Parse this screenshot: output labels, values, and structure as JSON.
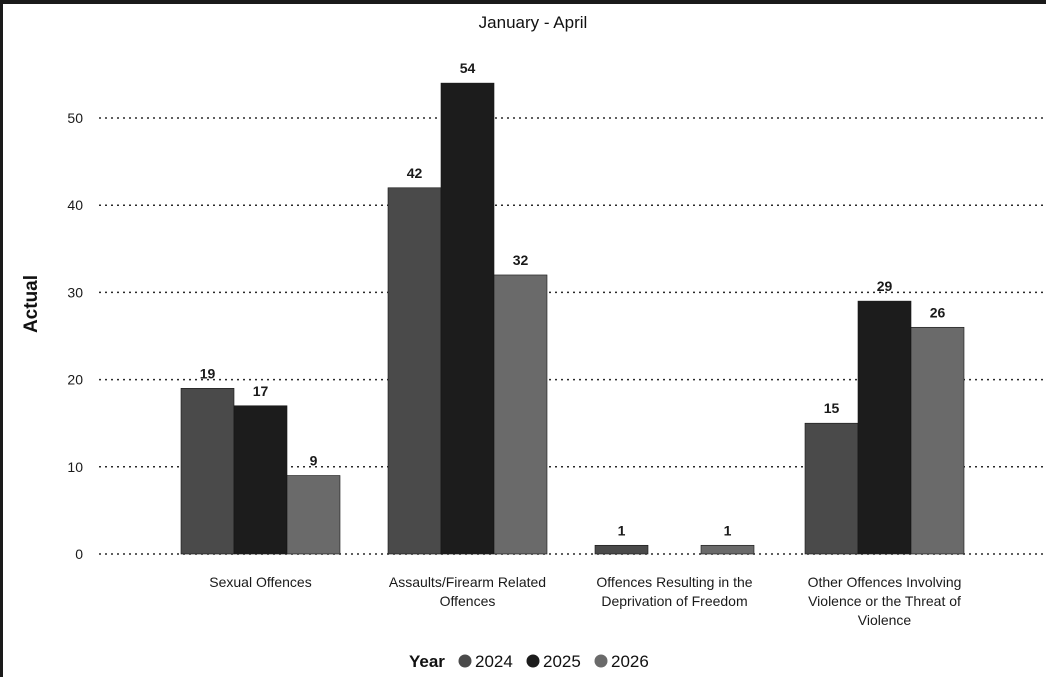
{
  "chart_data": {
    "type": "bar",
    "title": "January - April",
    "xlabel": "",
    "ylabel": "Actual",
    "ylim": [
      0,
      55
    ],
    "yticks": [
      0,
      10,
      20,
      30,
      40,
      50
    ],
    "grid": true,
    "legend": {
      "title": "Year",
      "placement": "bottom-center"
    },
    "categories": [
      [
        "Sexual Offences"
      ],
      [
        "Assaults/Firearm Related",
        "Offences"
      ],
      [
        "Offences Resulting in the",
        "Deprivation of Freedom"
      ],
      [
        "Other Offences Involving",
        "Violence or the Threat of",
        "Violence"
      ]
    ],
    "series": [
      {
        "name": "2024",
        "color": "#4a4a4a",
        "values": [
          19,
          42,
          1,
          15
        ]
      },
      {
        "name": "2025",
        "color": "#1c1c1c",
        "values": [
          17,
          54,
          null,
          29
        ]
      },
      {
        "name": "2026",
        "color": "#6a6a6a",
        "values": [
          9,
          32,
          1,
          26
        ]
      }
    ]
  }
}
